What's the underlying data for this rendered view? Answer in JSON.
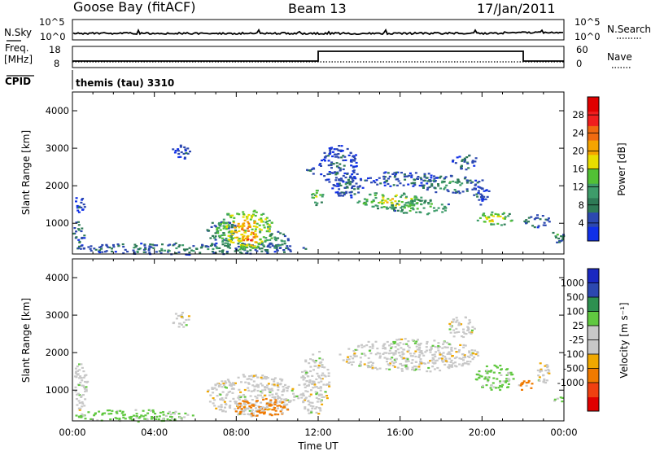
{
  "header": {
    "station": "Goose Bay (fitACF)",
    "beam": "Beam 13",
    "date": "17/Jan/2011"
  },
  "noise_panel": {
    "left_label": "N.Sky",
    "right_label": "N.Search",
    "left_ticks": [
      "10^5",
      "10^0"
    ],
    "right_ticks": [
      "10^5",
      "10^0"
    ]
  },
  "freq_panel": {
    "left_label": "Freq.",
    "left_unit": "[MHz]",
    "right_label": "Nave",
    "left_ticks": [
      "18",
      "8"
    ],
    "right_ticks": [
      "60",
      "0"
    ]
  },
  "cpid_panel": {
    "label": "CPID",
    "text": "themis (tau) 3310"
  },
  "colors": {
    "power_scale": [
      "#1030e8",
      "#2c48b0",
      "#2e7a56",
      "#3e9c6a",
      "#52c035",
      "#e8dd00",
      "#f5a400",
      "#f06a10",
      "#f01e1e",
      "#e00000"
    ],
    "velocity_scale": [
      "#e00000",
      "#f04010",
      "#f07a00",
      "#f0a800",
      "#c8c8c8",
      "#c8c8c8",
      "#60c840",
      "#2e9050",
      "#2c48b0",
      "#1a28c0"
    ]
  },
  "chart_data": [
    {
      "type": "heatmap",
      "name": "power",
      "xlabel": "Time UT",
      "ylabel": "Slant Range [km]",
      "xlim": [
        0,
        24
      ],
      "ylim": [
        180,
        4500
      ],
      "yticks": [
        1000,
        2000,
        3000,
        4000
      ],
      "xtick_labels": [
        "00:00",
        "04:00",
        "08:00",
        "12:00",
        "16:00",
        "20:00",
        "00:00"
      ],
      "colorbar": {
        "label": "Power [dB]",
        "range": [
          0,
          32
        ],
        "ticks": [
          "4",
          "8",
          "12",
          "16",
          "20",
          "24",
          "28"
        ]
      },
      "regions": [
        {
          "t": [
            0.0,
            11.5
          ],
          "r": [
            180,
            500
          ],
          "value": 10
        },
        {
          "t": [
            0.0,
            0.6
          ],
          "r": [
            1300,
            1750
          ],
          "value": 6
        },
        {
          "t": [
            0.0,
            0.6
          ],
          "r": [
            400,
            1100
          ],
          "value": 8
        },
        {
          "t": [
            4.8,
            5.7
          ],
          "r": [
            2700,
            3100
          ],
          "value": 5
        },
        {
          "t": [
            6.5,
            8.0
          ],
          "r": [
            500,
            1100
          ],
          "value": 12
        },
        {
          "t": [
            7.0,
            9.8
          ],
          "r": [
            300,
            1400
          ],
          "value": 24
        },
        {
          "t": [
            8.0,
            9.3
          ],
          "r": [
            350,
            900
          ],
          "value": 28
        },
        {
          "t": [
            9.5,
            10.5
          ],
          "r": [
            300,
            800
          ],
          "value": 12
        },
        {
          "t": [
            11.3,
            12.0
          ],
          "r": [
            2300,
            2500
          ],
          "value": 6
        },
        {
          "t": [
            11.6,
            12.2
          ],
          "r": [
            1500,
            1950
          ],
          "value": 18
        },
        {
          "t": [
            12.0,
            14.0
          ],
          "r": [
            2000,
            3100
          ],
          "value": 6
        },
        {
          "t": [
            12.6,
            14.2
          ],
          "r": [
            1700,
            2300
          ],
          "value": 8
        },
        {
          "t": [
            14.0,
            18.0
          ],
          "r": [
            2000,
            2400
          ],
          "value": 7
        },
        {
          "t": [
            13.8,
            17.2
          ],
          "r": [
            1400,
            1850
          ],
          "value": 20
        },
        {
          "t": [
            15.5,
            18.5
          ],
          "r": [
            1250,
            1650
          ],
          "value": 16
        },
        {
          "t": [
            17.0,
            19.7
          ],
          "r": [
            1800,
            2300
          ],
          "value": 12
        },
        {
          "t": [
            18.5,
            19.7
          ],
          "r": [
            2450,
            2900
          ],
          "value": 8
        },
        {
          "t": [
            19.5,
            20.3
          ],
          "r": [
            1500,
            2300
          ],
          "value": 6
        },
        {
          "t": [
            19.7,
            21.5
          ],
          "r": [
            950,
            1350
          ],
          "value": 20
        },
        {
          "t": [
            22.0,
            23.3
          ],
          "r": [
            900,
            1250
          ],
          "value": 10
        },
        {
          "t": [
            23.3,
            24.0
          ],
          "r": [
            500,
            900
          ],
          "value": 12
        }
      ]
    },
    {
      "type": "heatmap",
      "name": "velocity",
      "xlabel": "Time UT",
      "ylabel": "Slant Range [km]",
      "xlim": [
        0,
        24
      ],
      "ylim": [
        180,
        4500
      ],
      "yticks": [
        1000,
        2000,
        3000,
        4000
      ],
      "xtick_labels": [
        "00:00",
        "04:00",
        "08:00",
        "12:00",
        "16:00",
        "20:00",
        "00:00"
      ],
      "colorbar": {
        "label": "Velocity [m s⁻¹]",
        "ticks": [
          "1000",
          "500",
          "100",
          "25",
          "-25",
          "-100",
          "-500",
          "-1000"
        ]
      },
      "regions": [
        {
          "t": [
            0.0,
            6.0
          ],
          "r": [
            180,
            500
          ],
          "value": 60
        },
        {
          "t": [
            0.0,
            0.7
          ],
          "r": [
            400,
            1800
          ],
          "value": 0
        },
        {
          "t": [
            4.8,
            5.7
          ],
          "r": [
            2700,
            3100
          ],
          "value": 0
        },
        {
          "t": [
            6.5,
            11.0
          ],
          "r": [
            300,
            1450
          ],
          "value": 0
        },
        {
          "t": [
            7.8,
            10.5
          ],
          "r": [
            300,
            800
          ],
          "value": -100
        },
        {
          "t": [
            11.0,
            12.5
          ],
          "r": [
            350,
            2100
          ],
          "value": 0
        },
        {
          "t": [
            13.0,
            19.8
          ],
          "r": [
            1500,
            2400
          ],
          "value": 0
        },
        {
          "t": [
            18.3,
            19.6
          ],
          "r": [
            2400,
            3000
          ],
          "value": 0
        },
        {
          "t": [
            19.6,
            21.5
          ],
          "r": [
            1000,
            1700
          ],
          "value": 60
        },
        {
          "t": [
            21.7,
            22.5
          ],
          "r": [
            1000,
            1300
          ],
          "value": -100
        },
        {
          "t": [
            22.5,
            23.3
          ],
          "r": [
            1200,
            1800
          ],
          "value": 0
        },
        {
          "t": [
            23.4,
            24.0
          ],
          "r": [
            700,
            850
          ],
          "value": 60
        }
      ]
    }
  ]
}
